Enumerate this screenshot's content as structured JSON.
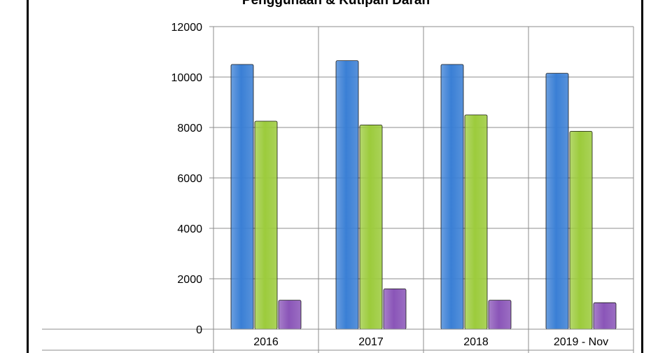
{
  "chart_data": {
    "type": "bar",
    "title": "Penggunaan & Kutipan Darah",
    "categories": [
      "2016",
      "2017",
      "2018",
      "2019 - Nov"
    ],
    "series": [
      {
        "color": "#3A7FD5",
        "values": [
          10500,
          10650,
          10500,
          10150
        ]
      },
      {
        "color": "#9CCB3C",
        "values": [
          8250,
          8100,
          8500,
          7850
        ]
      },
      {
        "color": "#8A55B8",
        "values": [
          1150,
          1600,
          1150,
          1050
        ]
      }
    ],
    "xlabel": "",
    "ylabel": "",
    "ylim": [
      0,
      12000
    ],
    "yticks": [
      0,
      2000,
      4000,
      6000,
      8000,
      10000,
      12000
    ],
    "grid": true,
    "legend": "none"
  }
}
